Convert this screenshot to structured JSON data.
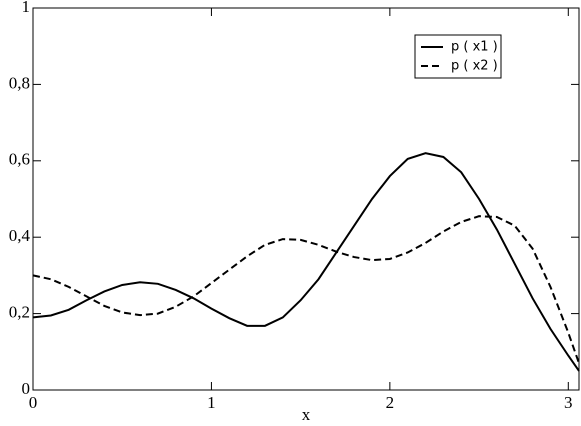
{
  "chart_data": {
    "type": "line",
    "xlabel": "x",
    "x": [
      0,
      0.1,
      0.2,
      0.3,
      0.4,
      0.5,
      0.6,
      0.7,
      0.8,
      0.9,
      1.0,
      1.1,
      1.2,
      1.3,
      1.4,
      1.5,
      1.6,
      1.7,
      1.8,
      1.9,
      2.0,
      2.1,
      2.2,
      2.3,
      2.4,
      2.5,
      2.6,
      2.7,
      2.8,
      2.9,
      3.0,
      3.06
    ],
    "series": [
      {
        "name": "p ( x1 )",
        "color": "#000000",
        "style": "solid",
        "values": [
          0.19,
          0.195,
          0.21,
          0.235,
          0.258,
          0.275,
          0.282,
          0.278,
          0.262,
          0.24,
          0.213,
          0.188,
          0.168,
          0.168,
          0.19,
          0.235,
          0.29,
          0.36,
          0.43,
          0.5,
          0.56,
          0.605,
          0.62,
          0.61,
          0.57,
          0.5,
          0.42,
          0.33,
          0.24,
          0.16,
          0.09,
          0.05
        ]
      },
      {
        "name": "p ( x2 )",
        "color": "#000000",
        "style": "dashed",
        "values": [
          0.3,
          0.29,
          0.27,
          0.245,
          0.22,
          0.203,
          0.196,
          0.2,
          0.218,
          0.245,
          0.28,
          0.315,
          0.35,
          0.38,
          0.395,
          0.393,
          0.38,
          0.362,
          0.348,
          0.34,
          0.343,
          0.36,
          0.385,
          0.415,
          0.44,
          0.455,
          0.453,
          0.43,
          0.37,
          0.27,
          0.15,
          0.07
        ]
      }
    ],
    "xlim": [
      0,
      3.06
    ],
    "xticks": [
      0,
      1,
      2,
      3
    ],
    "ylim": [
      0,
      1
    ],
    "yticks": [
      0,
      {
        "value": 0.2,
        "label": "0,2"
      },
      {
        "value": 0.4,
        "label": "0,4"
      },
      {
        "value": 0.6,
        "label": "0,6"
      },
      {
        "value": 0.8,
        "label": "0,8"
      },
      1
    ],
    "grid": false,
    "legend": "upper right"
  }
}
